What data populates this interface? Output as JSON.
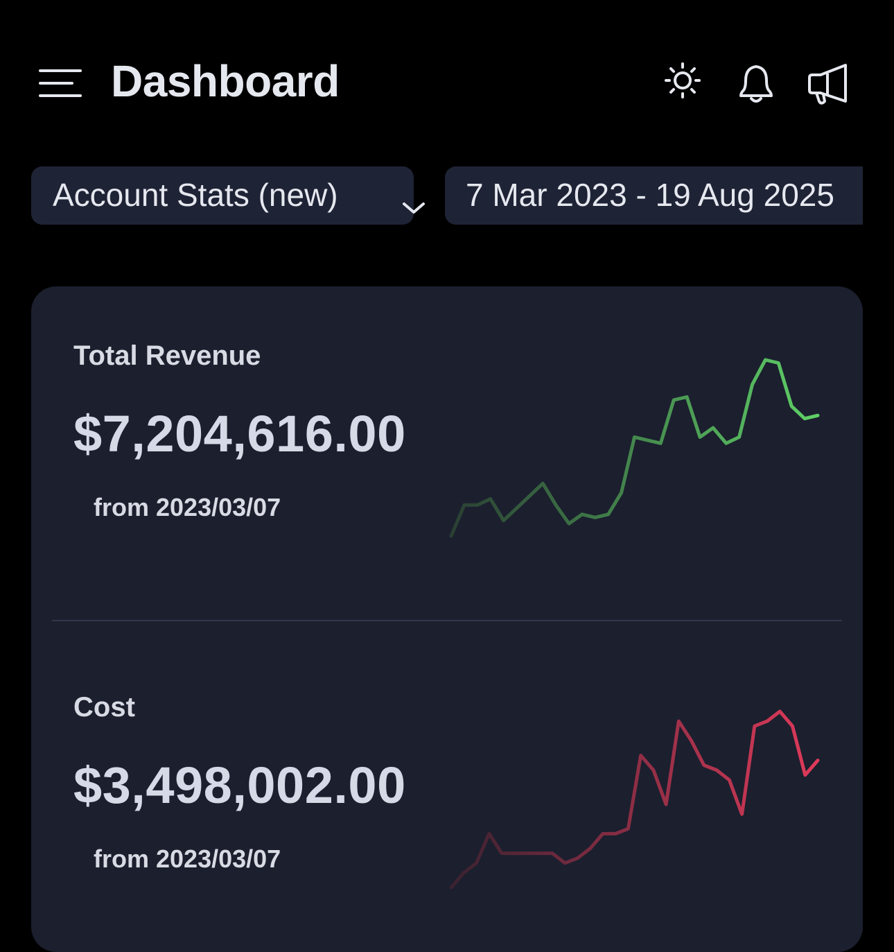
{
  "header": {
    "title": "Dashboard",
    "menu_icon": "hamburger-menu-icon",
    "theme_icon": "sun-icon",
    "notifications_icon": "bell-icon",
    "announcements_icon": "megaphone-icon"
  },
  "filters": {
    "view": {
      "selected": "Account Stats (new)",
      "icon": "chevron-down-icon"
    },
    "date_range": "7 Mar 2023 - 19 Aug 2025"
  },
  "metrics": [
    {
      "label": "Total Revenue",
      "value": "$7,204,616.00",
      "sub": "from 2023/03/07",
      "trend": [
        0,
        10,
        10,
        12,
        5,
        9,
        13,
        17,
        10,
        4,
        7,
        6,
        7,
        14,
        32,
        31,
        30,
        44,
        45,
        32,
        35,
        30,
        32,
        49,
        57,
        56,
        42,
        38,
        39
      ],
      "color_start": "#2a3f33",
      "color_end": "#5fd067"
    },
    {
      "label": "Cost",
      "value": "$3,498,002.00",
      "sub": "from 2023/03/07",
      "trend": [
        0,
        3,
        5,
        11,
        7,
        7,
        7,
        7,
        7,
        5,
        6,
        8,
        11,
        11,
        12,
        27,
        24,
        17,
        34,
        30,
        25,
        24,
        22,
        15,
        33,
        34,
        36,
        33,
        23,
        26
      ],
      "color_start": "#3a2230",
      "color_end": "#e03a5a"
    }
  ],
  "colors": {
    "background": "#000000",
    "card": "#1b1f2e",
    "control": "#1f2336",
    "text": "#e6e8ef"
  }
}
